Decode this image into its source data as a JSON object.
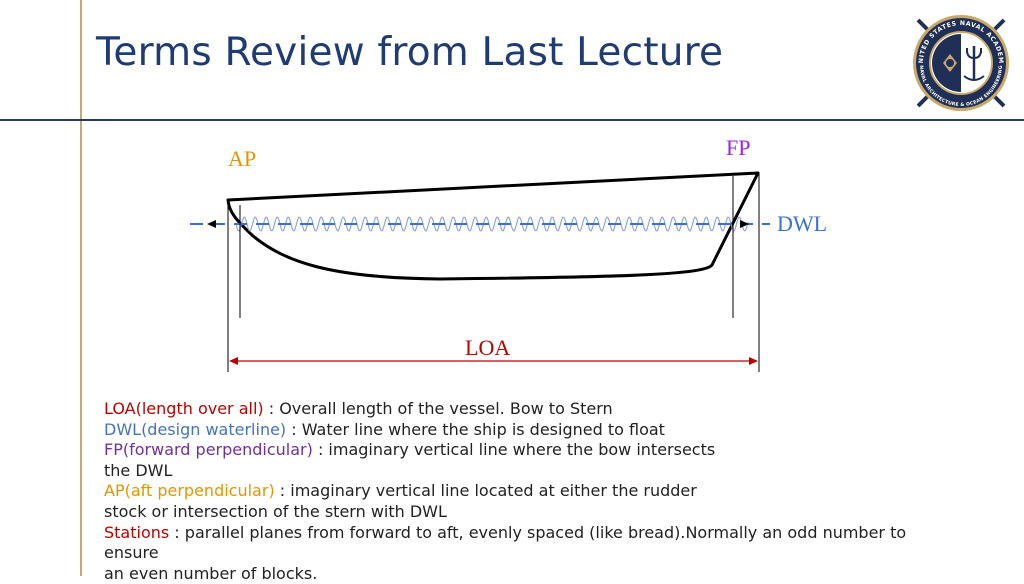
{
  "slide": {
    "title": "Terms Review from Last Lecture"
  },
  "logo": {
    "icon": "naval-academy-seal-icon",
    "ring_text_top": "UNITED STATES NAVAL ACADEMY",
    "ring_text_bottom": "NAVAL ARCHITECTURE & OCEAN ENGINEERING"
  },
  "diagram": {
    "ap_label": "AP",
    "fp_label": "FP",
    "dwl_label": "DWL",
    "loa_label": "LOA",
    "colors": {
      "ap": "#e69500",
      "fp": "#a020f0",
      "dwl": "#3b6fd8",
      "loa": "#c00000",
      "wave": "#8aa0e0"
    }
  },
  "definitions": [
    {
      "term": "LOA",
      "expansion": "(length over all)",
      "text": " : Overall length of the vessel. Bow to Stern",
      "color": "red"
    },
    {
      "term": "DWL",
      "expansion": "(design waterline)",
      "text": " : Water line where the ship is designed to float",
      "color": "blue"
    },
    {
      "term": "FP",
      "expansion": "(forward perpendicular)",
      "text": " : imaginary vertical line where the bow intersects",
      "text2": "the DWL",
      "color": "purple"
    },
    {
      "term": "AP",
      "expansion": "(aft perpendicular)",
      "text": " : imaginary vertical line located at either the rudder",
      "text2": "stock or intersection of the stern with DWL",
      "color": "orange"
    },
    {
      "term": "Stations",
      "text": " : parallel planes from forward to aft, evenly spaced (like bread).Normally an odd number to ensure",
      "text2": "an even number of blocks.",
      "color": "red"
    }
  ]
}
